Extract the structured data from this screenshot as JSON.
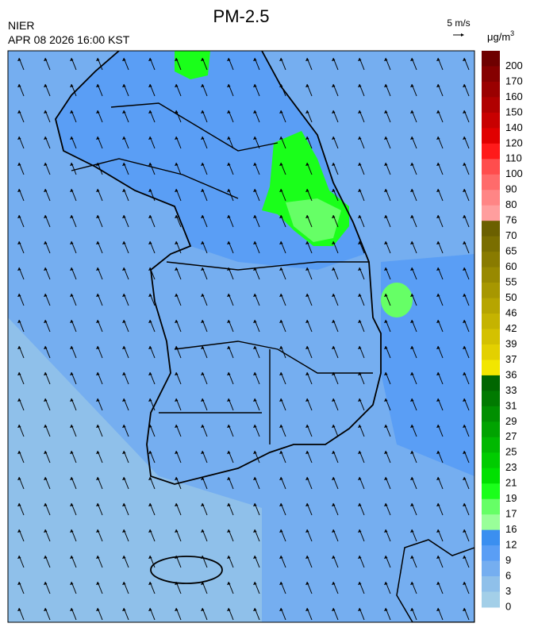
{
  "header": {
    "title": "PM-2.5",
    "agency": "NIER",
    "timestamp": "APR 08 2026 16:00 KST"
  },
  "wind_scale": {
    "label": "5 m/s"
  },
  "colorbar": {
    "unit": {
      "base": "μg/m",
      "sup": "3"
    },
    "labels": [
      200,
      170,
      160,
      150,
      140,
      120,
      110,
      100,
      90,
      80,
      76,
      70,
      65,
      60,
      55,
      50,
      46,
      42,
      39,
      37,
      36,
      33,
      31,
      29,
      27,
      25,
      23,
      21,
      19,
      17,
      16,
      12,
      9,
      6,
      3,
      0
    ],
    "colors": [
      "#6e0000",
      "#850000",
      "#9a0000",
      "#b00000",
      "#c80000",
      "#e00000",
      "#ff1a1a",
      "#ff4d4d",
      "#ff6b6b",
      "#ff8585",
      "#ff9e9e",
      "#6b6000",
      "#7a6e00",
      "#897b00",
      "#988900",
      "#a79700",
      "#b6a500",
      "#c5b300",
      "#d4c100",
      "#e3d000",
      "#f2e600",
      "#006600",
      "#007a00",
      "#008f00",
      "#00a300",
      "#00b800",
      "#00cc00",
      "#00e000",
      "#1aff1a",
      "#66ff66",
      "#99ff99",
      "#3b8ff0",
      "#5a9ef5",
      "#75aef0",
      "#8fc0ea",
      "#a3cfe8"
    ]
  }
}
